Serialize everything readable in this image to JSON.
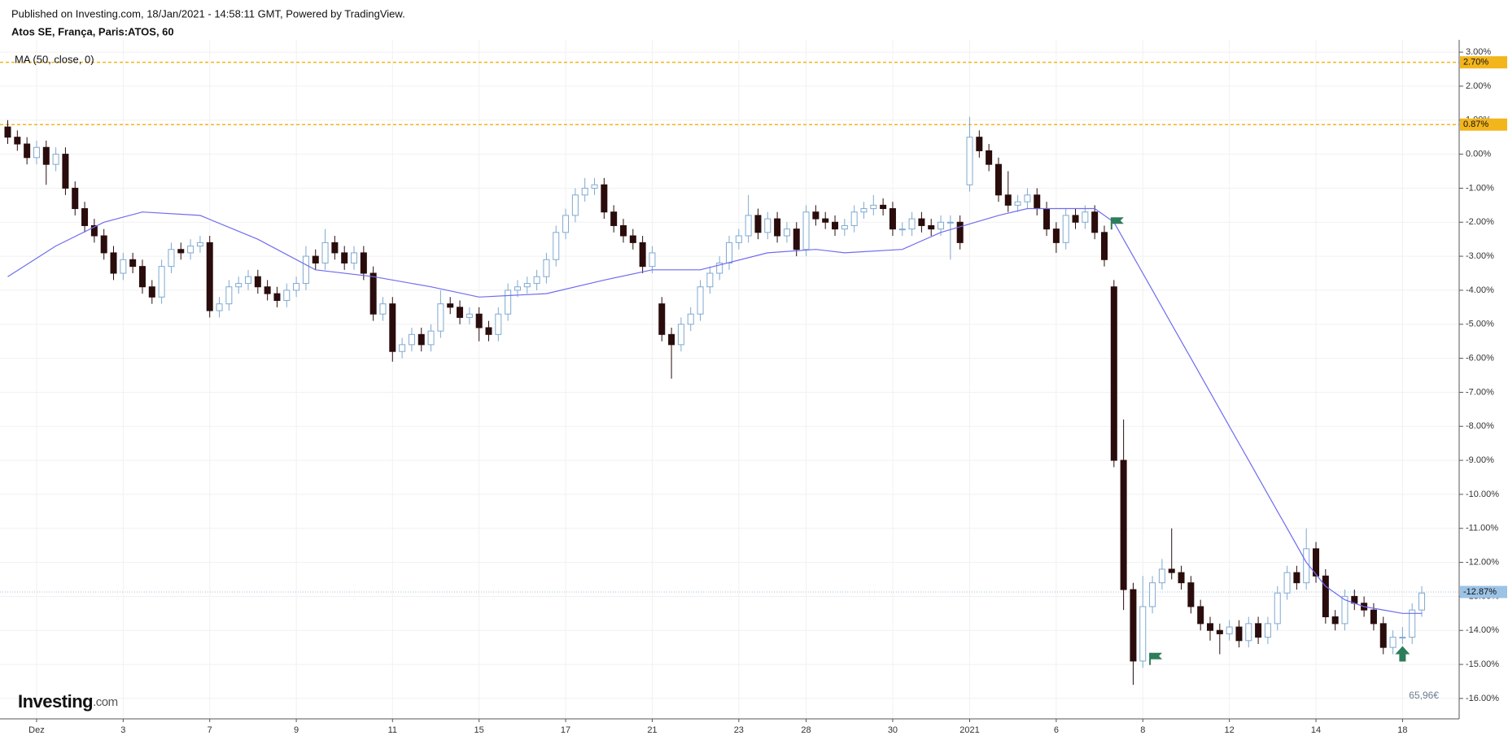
{
  "header": {
    "published": "Published on Investing.com, 18/Jan/2021 - 14:58:11 GMT, Powered by TradingView.",
    "symbol": "Atos SE, França, Paris:ATOS, 60"
  },
  "logo": {
    "main": "Investing",
    "suffix": ".com"
  },
  "chart_data": {
    "type": "candlestick",
    "indicator_label": "MA (50, close, 0)",
    "price_label": "65,96€",
    "up_color": "#7fa9d1",
    "down_color": "#2a0c0c",
    "ma_color": "#6f6cf0",
    "grid": true,
    "ylim": [
      -16.6,
      3.17
    ],
    "yticks": [
      {
        "value": 3,
        "label": "3.00%"
      },
      {
        "value": 2,
        "label": "2.00%"
      },
      {
        "value": 1,
        "label": "1.00%"
      },
      {
        "value": 0,
        "label": "0.00%"
      },
      {
        "value": -1,
        "label": "-1.00%"
      },
      {
        "value": -2,
        "label": "-2.00%"
      },
      {
        "value": -3,
        "label": "-3.00%"
      },
      {
        "value": -4,
        "label": "-4.00%"
      },
      {
        "value": -5,
        "label": "-5.00%"
      },
      {
        "value": -6,
        "label": "-6.00%"
      },
      {
        "value": -7,
        "label": "-7.00%"
      },
      {
        "value": -8,
        "label": "-8.00%"
      },
      {
        "value": -9,
        "label": "-9.00%"
      },
      {
        "value": -10,
        "label": "-10.00%"
      },
      {
        "value": -11,
        "label": "-11.00%"
      },
      {
        "value": -12,
        "label": "-12.00%"
      },
      {
        "value": -13,
        "label": "-13.00%"
      },
      {
        "value": -14,
        "label": "-14.00%"
      },
      {
        "value": -15,
        "label": "-15.00%"
      },
      {
        "value": -16,
        "label": "-16.00%"
      }
    ],
    "categories": [
      null,
      null,
      null,
      "Dez",
      null,
      null,
      null,
      null,
      null,
      null,
      null,
      null,
      "3",
      null,
      null,
      null,
      null,
      null,
      null,
      null,
      null,
      "7",
      null,
      null,
      null,
      null,
      null,
      null,
      null,
      null,
      "9",
      null,
      null,
      null,
      null,
      null,
      null,
      null,
      null,
      null,
      "11",
      null,
      null,
      null,
      null,
      null,
      null,
      null,
      null,
      "15",
      null,
      null,
      null,
      null,
      null,
      null,
      null,
      null,
      "17",
      null,
      null,
      null,
      null,
      null,
      null,
      null,
      null,
      "21",
      null,
      null,
      null,
      null,
      null,
      null,
      null,
      null,
      "23",
      null,
      null,
      null,
      null,
      null,
      null,
      "28",
      null,
      null,
      null,
      null,
      null,
      null,
      null,
      null,
      "30",
      null,
      null,
      null,
      null,
      null,
      null,
      null,
      "2021",
      null,
      null,
      null,
      null,
      null,
      null,
      null,
      null,
      "6",
      null,
      null,
      null,
      null,
      null,
      null,
      null,
      null,
      "8",
      null,
      null,
      null,
      null,
      null,
      null,
      null,
      null,
      "12",
      null,
      null,
      null,
      null,
      null,
      null,
      null,
      null,
      "14",
      null,
      null,
      null,
      null,
      null,
      null,
      null,
      null,
      "18",
      null,
      null
    ],
    "open": [
      0.8,
      0.5,
      0.3,
      -0.1,
      0.2,
      -0.3,
      0.0,
      -1.0,
      -1.6,
      -2.1,
      -2.4,
      -2.9,
      -3.5,
      -3.1,
      -3.3,
      -3.9,
      -4.2,
      -3.3,
      -2.8,
      -2.9,
      -2.7,
      -2.6,
      -4.6,
      -4.4,
      -3.9,
      -3.8,
      -3.6,
      -3.9,
      -4.1,
      -4.3,
      -4.0,
      -3.8,
      -3.0,
      -3.2,
      -2.6,
      -2.9,
      -3.2,
      -2.9,
      -3.5,
      -4.7,
      -4.4,
      -5.8,
      -5.6,
      -5.3,
      -5.6,
      -5.2,
      -4.4,
      -4.5,
      -4.8,
      -4.7,
      -5.1,
      -5.3,
      -4.7,
      -4.0,
      -3.9,
      -3.8,
      -3.6,
      -3.1,
      -2.3,
      -1.8,
      -1.2,
      -1.0,
      -0.9,
      -1.7,
      -2.1,
      -2.4,
      -2.6,
      -3.3,
      -4.4,
      -5.3,
      -5.6,
      -5.0,
      -4.7,
      -3.9,
      -3.5,
      -3.2,
      -2.6,
      -2.4,
      -1.8,
      -2.3,
      -1.9,
      -2.4,
      -2.2,
      -2.8,
      -1.7,
      -1.9,
      -2.0,
      -2.2,
      -2.1,
      -1.7,
      -1.6,
      -1.5,
      -1.6,
      -2.2,
      -2.2,
      -1.9,
      -2.1,
      -2.2,
      -2.0,
      -2.0,
      -0.9,
      0.5,
      0.1,
      -0.3,
      -1.2,
      -1.5,
      -1.4,
      -1.2,
      -1.6,
      -2.2,
      -2.6,
      -1.8,
      -2.0,
      -1.7,
      -2.3,
      -3.9,
      -9.0,
      -12.8,
      -14.9,
      -13.3,
      -12.6,
      -12.2,
      -12.3,
      -12.6,
      -13.3,
      -13.8,
      -14.0,
      -14.1,
      -13.9,
      -14.3,
      -13.8,
      -14.2,
      -13.8,
      -12.9,
      -12.3,
      -12.6,
      -11.6,
      -12.4,
      -13.6,
      -13.8,
      -13.0,
      -13.2,
      -13.4,
      -13.8,
      -14.5,
      -14.2,
      -14.2,
      -13.4
    ],
    "high": [
      1.0,
      0.7,
      0.5,
      0.4,
      0.4,
      0.2,
      0.2,
      -0.8,
      -1.4,
      -1.9,
      -2.2,
      -2.7,
      -2.9,
      -2.9,
      -3.1,
      -3.7,
      -3.1,
      -2.6,
      -2.6,
      -2.5,
      -2.4,
      -2.4,
      -4.2,
      -3.7,
      -3.6,
      -3.4,
      -3.4,
      -3.7,
      -3.9,
      -3.8,
      -3.6,
      -2.7,
      -2.8,
      -2.2,
      -2.4,
      -2.7,
      -2.7,
      -2.7,
      -3.3,
      -4.2,
      -4.2,
      -5.4,
      -5.1,
      -5.1,
      -5.0,
      -4.0,
      -4.2,
      -4.3,
      -4.5,
      -4.5,
      -4.9,
      -4.5,
      -3.8,
      -3.7,
      -3.6,
      -3.4,
      -2.9,
      -2.1,
      -1.6,
      -1.0,
      -0.7,
      -0.7,
      -0.7,
      -1.5,
      -1.9,
      -2.2,
      -2.4,
      -2.7,
      -4.2,
      -5.1,
      -4.8,
      -4.5,
      -3.7,
      -3.3,
      -3.0,
      -2.4,
      -2.2,
      -1.2,
      -1.6,
      -1.7,
      -1.7,
      -2.0,
      -2.0,
      -1.5,
      -1.5,
      -1.7,
      -1.8,
      -1.9,
      -1.5,
      -1.4,
      -1.2,
      -1.3,
      -1.4,
      -2.0,
      -1.7,
      -1.7,
      -1.9,
      -1.8,
      -1.8,
      -1.8,
      1.1,
      0.7,
      0.3,
      -0.1,
      -0.5,
      -1.2,
      -1.0,
      -1.0,
      -1.4,
      -2.0,
      -1.6,
      -1.6,
      -1.5,
      -1.5,
      -2.1,
      -3.7,
      -7.8,
      -12.6,
      -12.4,
      -12.4,
      -11.9,
      -11.0,
      -12.1,
      -12.4,
      -13.1,
      -13.6,
      -13.8,
      -13.7,
      -13.7,
      -13.6,
      -13.6,
      -13.6,
      -12.7,
      -12.1,
      -12.1,
      -11.0,
      -11.4,
      -12.2,
      -13.4,
      -12.8,
      -12.8,
      -13.0,
      -13.2,
      -13.6,
      -14.0,
      -13.9,
      -13.2,
      -12.7
    ],
    "low": [
      0.3,
      0.1,
      -0.3,
      -0.3,
      -0.9,
      -0.5,
      -1.2,
      -1.8,
      -2.3,
      -2.6,
      -3.1,
      -3.7,
      -3.7,
      -3.5,
      -4.1,
      -4.4,
      -4.4,
      -3.5,
      -3.1,
      -3.1,
      -2.9,
      -4.8,
      -4.8,
      -4.6,
      -4.1,
      -4.0,
      -4.1,
      -4.3,
      -4.5,
      -4.5,
      -4.2,
      -4.0,
      -3.4,
      -3.4,
      -3.1,
      -3.4,
      -3.4,
      -3.7,
      -4.9,
      -4.9,
      -6.1,
      -6.0,
      -5.8,
      -5.8,
      -5.8,
      -5.4,
      -4.7,
      -5.0,
      -5.0,
      -5.5,
      -5.5,
      -5.5,
      -4.9,
      -4.2,
      -4.1,
      -4.0,
      -3.8,
      -3.3,
      -2.5,
      -2.0,
      -1.4,
      -1.2,
      -1.9,
      -2.3,
      -2.6,
      -2.8,
      -3.5,
      -3.5,
      -5.5,
      -6.6,
      -5.8,
      -5.2,
      -4.9,
      -4.1,
      -3.7,
      -3.4,
      -2.8,
      -2.6,
      -2.5,
      -2.5,
      -2.6,
      -2.6,
      -3.0,
      -3.0,
      -2.1,
      -2.2,
      -2.4,
      -2.4,
      -2.3,
      -1.9,
      -1.8,
      -1.8,
      -2.4,
      -2.4,
      -2.4,
      -2.3,
      -2.4,
      -2.4,
      -3.1,
      -2.8,
      -1.1,
      -0.1,
      -0.5,
      -1.4,
      -1.7,
      -1.7,
      -1.6,
      -1.8,
      -2.4,
      -2.9,
      -2.8,
      -2.2,
      -2.2,
      -2.5,
      -3.3,
      -9.2,
      -13.4,
      -15.6,
      -15.1,
      -13.5,
      -12.8,
      -12.5,
      -12.8,
      -13.5,
      -14.0,
      -14.3,
      -14.7,
      -14.3,
      -14.5,
      -14.5,
      -14.4,
      -14.4,
      -14.0,
      -13.1,
      -12.8,
      -12.8,
      -12.6,
      -13.8,
      -14.0,
      -14.0,
      -13.4,
      -13.6,
      -14.0,
      -14.7,
      -14.7,
      -14.4,
      -14.4,
      -13.6
    ],
    "close": [
      0.5,
      0.3,
      -0.1,
      0.2,
      -0.3,
      0.0,
      -1.0,
      -1.6,
      -2.1,
      -2.4,
      -2.9,
      -3.5,
      -3.1,
      -3.3,
      -3.9,
      -4.2,
      -3.3,
      -2.8,
      -2.9,
      -2.7,
      -2.6,
      -4.6,
      -4.4,
      -3.9,
      -3.8,
      -3.6,
      -3.9,
      -4.1,
      -4.3,
      -4.0,
      -3.8,
      -3.0,
      -3.2,
      -2.6,
      -2.9,
      -3.2,
      -2.9,
      -3.5,
      -4.7,
      -4.4,
      -5.8,
      -5.6,
      -5.3,
      -5.6,
      -5.2,
      -4.4,
      -4.5,
      -4.8,
      -4.7,
      -5.1,
      -5.3,
      -4.7,
      -4.0,
      -3.9,
      -3.8,
      -3.6,
      -3.1,
      -2.3,
      -1.8,
      -1.2,
      -1.0,
      -0.9,
      -1.7,
      -2.1,
      -2.4,
      -2.6,
      -3.3,
      -2.9,
      -5.3,
      -5.6,
      -5.0,
      -4.7,
      -3.9,
      -3.5,
      -3.2,
      -2.6,
      -2.4,
      -1.8,
      -2.3,
      -1.9,
      -2.4,
      -2.2,
      -2.8,
      -1.7,
      -1.9,
      -2.0,
      -2.2,
      -2.1,
      -1.7,
      -1.6,
      -1.5,
      -1.6,
      -2.2,
      -2.2,
      -1.9,
      -2.1,
      -2.2,
      -2.0,
      -2.0,
      -2.6,
      0.5,
      0.1,
      -0.3,
      -1.2,
      -1.5,
      -1.4,
      -1.2,
      -1.6,
      -2.2,
      -2.6,
      -1.8,
      -2.0,
      -1.7,
      -2.3,
      -3.1,
      -9.0,
      -12.8,
      -14.9,
      -13.3,
      -12.6,
      -12.2,
      -12.3,
      -12.6,
      -13.3,
      -13.8,
      -14.0,
      -14.1,
      -13.9,
      -14.3,
      -13.8,
      -14.2,
      -13.8,
      -12.9,
      -12.3,
      -12.6,
      -11.6,
      -12.4,
      -13.6,
      -13.8,
      -13.0,
      -13.2,
      -13.4,
      -13.8,
      -14.5,
      -14.2,
      -14.2,
      -13.4,
      -12.9
    ],
    "ma": {
      "x": [
        0,
        5,
        10,
        14,
        20,
        26,
        32,
        38,
        44,
        49,
        56,
        62,
        67,
        72,
        79,
        84,
        87,
        93,
        97,
        103,
        106,
        113,
        115,
        117,
        119,
        121,
        123,
        125,
        127,
        129,
        131,
        133,
        135,
        137,
        139,
        141,
        143,
        145,
        147
      ],
      "values": [
        -3.6,
        -2.7,
        -2.0,
        -1.7,
        -1.8,
        -2.5,
        -3.4,
        -3.6,
        -3.9,
        -4.2,
        -4.1,
        -3.7,
        -3.4,
        -3.4,
        -2.9,
        -2.8,
        -2.9,
        -2.8,
        -2.3,
        -1.8,
        -1.6,
        -1.6,
        -2.0,
        -3.0,
        -4.0,
        -5.0,
        -6.0,
        -7.0,
        -8.0,
        -9.0,
        -10.0,
        -11.0,
        -12.0,
        -12.7,
        -13.1,
        -13.3,
        -13.4,
        -13.5,
        -13.5
      ]
    },
    "hlines": [
      {
        "value": 2.7,
        "label": "2.70%",
        "color": "#f2b51c",
        "style": "dashed"
      },
      {
        "value": 0.87,
        "label": "0.87%",
        "color": "#f2b51c",
        "style": "dashed"
      },
      {
        "value": -12.87,
        "label": "-12.87%",
        "color": "#9cc3e6",
        "style": "dotted"
      }
    ],
    "markers": [
      {
        "index": 115,
        "value": -2.0,
        "shape": "flag",
        "color": "#2e7d5a"
      },
      {
        "index": 119,
        "value": -14.8,
        "shape": "flag",
        "color": "#2e7d5a"
      },
      {
        "index": 145,
        "value": -14.7,
        "shape": "arrow",
        "color": "#2e7d5a"
      }
    ]
  }
}
